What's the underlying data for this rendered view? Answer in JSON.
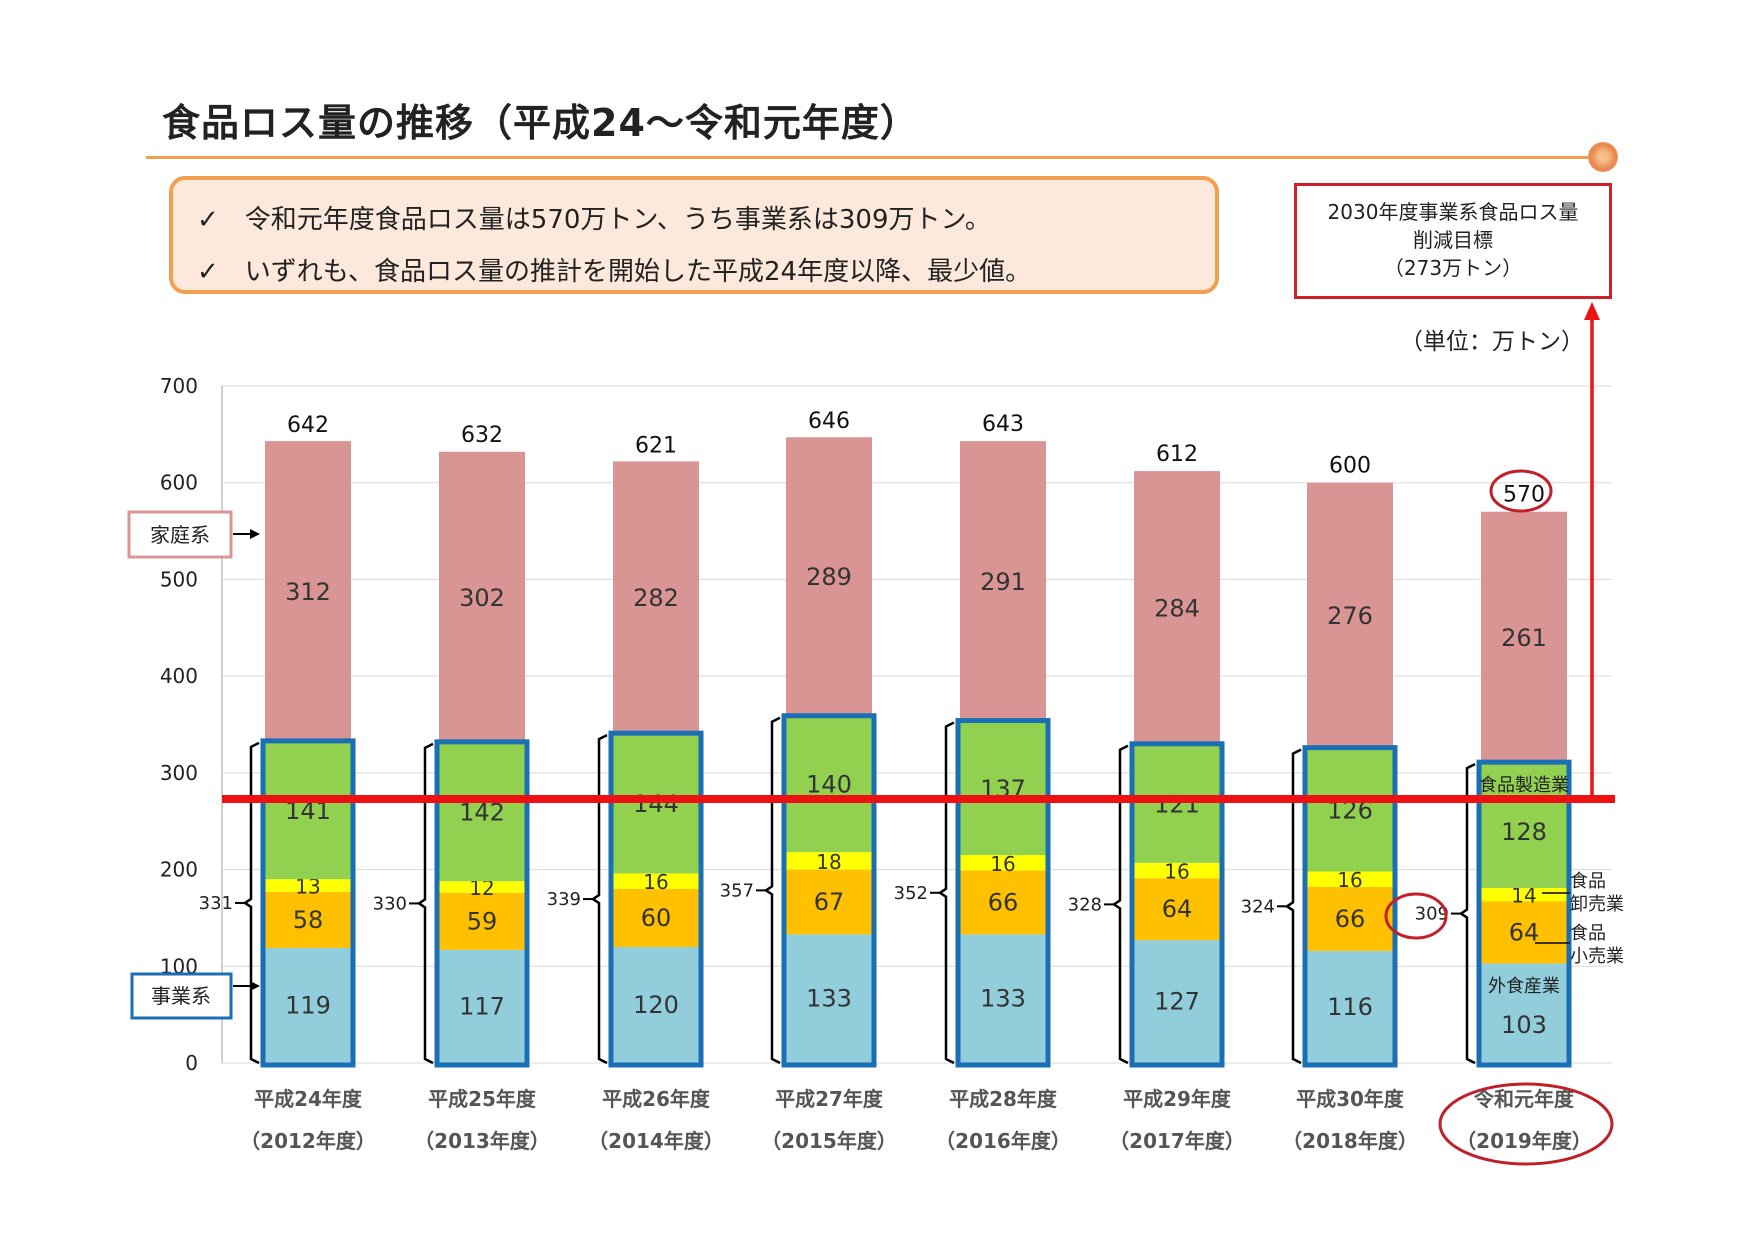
{
  "title": "食品ロス量の推移（平成24〜令和元年度）",
  "messages": [
    {
      "check_icon": "✓",
      "text": "令和元年度食品ロス量は570万トン、うち事業系は309万トン。"
    },
    {
      "check_icon": "✓",
      "text": "いずれも、食品ロス量の推計を開始した平成24年度以降、最少値。"
    }
  ],
  "target_box": {
    "line1": "2030年度事業系食品ロス量",
    "line2": "削減目標",
    "line3": "（273万トン）"
  },
  "unit_label": "（単位：万トン）",
  "colors": {
    "household": "#d99594",
    "manufacturing": "#92d050",
    "wholesale": "#ffff00",
    "retail": "#ffc000",
    "food_service": "#92cddc",
    "business_outline": "#1a6fb5",
    "target_line": "#ee1111",
    "highlight": "#c0202a"
  },
  "chart_data": {
    "type": "bar",
    "stacked": true,
    "ylim": [
      0,
      700
    ],
    "yticks": [
      0,
      100,
      200,
      300,
      400,
      500,
      600,
      700
    ],
    "grid": true,
    "categories": [
      {
        "line1": "平成24年度",
        "line2": "（2012年度）"
      },
      {
        "line1": "平成25年度",
        "line2": "（2013年度）"
      },
      {
        "line1": "平成26年度",
        "line2": "（2014年度）"
      },
      {
        "line1": "平成27年度",
        "line2": "（2015年度）"
      },
      {
        "line1": "平成28年度",
        "line2": "（2016年度）"
      },
      {
        "line1": "平成29年度",
        "line2": "（2017年度）"
      },
      {
        "line1": "平成30年度",
        "line2": "（2018年度）"
      },
      {
        "line1": "令和元年度",
        "line2": "（2019年度）"
      }
    ],
    "series": [
      {
        "name": "外食産業",
        "values": [
          119,
          117,
          120,
          133,
          133,
          127,
          116,
          103
        ]
      },
      {
        "name": "食品小売業",
        "values": [
          58,
          59,
          60,
          67,
          66,
          64,
          66,
          64
        ]
      },
      {
        "name": "食品卸売業",
        "values": [
          13,
          12,
          16,
          18,
          16,
          16,
          16,
          14
        ]
      },
      {
        "name": "食品製造業",
        "values": [
          141,
          142,
          144,
          140,
          137,
          121,
          126,
          128
        ]
      },
      {
        "name": "家庭系",
        "values": [
          312,
          302,
          282,
          289,
          291,
          284,
          276,
          261
        ]
      }
    ],
    "totals": [
      642,
      632,
      621,
      646,
      643,
      612,
      600,
      570
    ],
    "business_totals": [
      331,
      330,
      339,
      357,
      352,
      328,
      324,
      309
    ],
    "group_labels": {
      "household": "家庭系",
      "business": "事業系"
    },
    "segment_labels": {
      "manufacturing": "食品製造業",
      "wholesale_1": "食品",
      "wholesale_2": "卸売業",
      "retail_1": "食品",
      "retail_2": "小売業",
      "food_service": "外食産業"
    },
    "target_value": 273
  }
}
